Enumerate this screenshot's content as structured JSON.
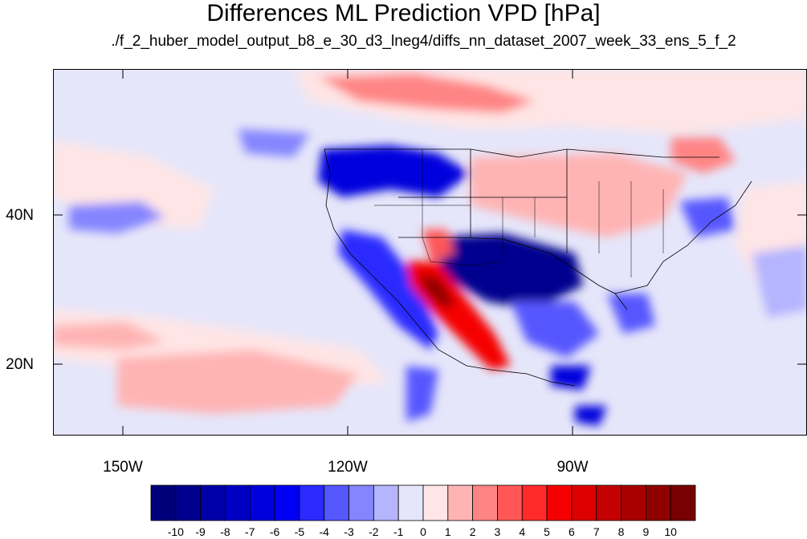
{
  "title": "Differences ML Prediction VPD [hPa]",
  "subtitle": "./f_2_huber_model_output_b8_e_30_d3_lneg4/diffs_nn_dataset_2007_week_33_ens_5_f_2",
  "map": {
    "lon_ticks": [
      "150W",
      "120W",
      "90W"
    ],
    "lat_ticks": [
      "40N",
      "20N"
    ]
  },
  "colorbar": {
    "labels": [
      "-10",
      "-9",
      "-8",
      "-7",
      "-6",
      "-5",
      "-4",
      "-3",
      "-2",
      "-1",
      "0",
      "1",
      "2",
      "3",
      "4",
      "5",
      "6",
      "7",
      "8",
      "9",
      "10"
    ],
    "colors": [
      "#00007a",
      "#00008f",
      "#0000a8",
      "#0000c4",
      "#0000dd",
      "#0000f5",
      "#2a2aff",
      "#5757ff",
      "#8585ff",
      "#b4b4ff",
      "#e6e6fa",
      "#ffe5e5",
      "#ffb4b4",
      "#ff8585",
      "#ff5757",
      "#ff2a2a",
      "#f50000",
      "#dd0000",
      "#c40000",
      "#a80000",
      "#8f0000",
      "#780000"
    ]
  }
}
